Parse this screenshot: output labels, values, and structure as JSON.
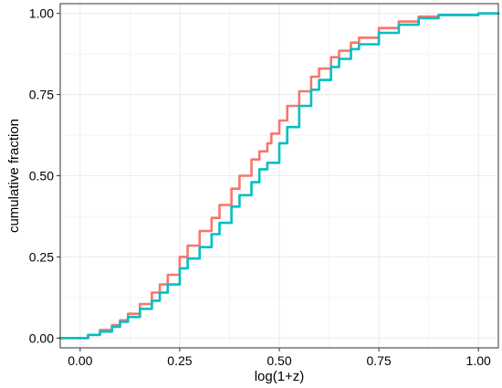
{
  "chart_data": {
    "type": "line",
    "xlabel": "log(1+z)",
    "ylabel": "cumulative fraction",
    "xlim": [
      -0.05,
      1.05
    ],
    "ylim": [
      -0.03,
      1.03
    ],
    "x_ticks": [
      0.0,
      0.25,
      0.5,
      0.75,
      1.0
    ],
    "x_tick_labels": [
      "0.00",
      "0.25",
      "0.50",
      "0.75",
      "1.00"
    ],
    "y_ticks": [
      0.0,
      0.25,
      0.5,
      0.75,
      1.0
    ],
    "y_tick_labels": [
      "0.00",
      "0.25",
      "0.50",
      "0.75",
      "1.00"
    ],
    "grid": true,
    "legend": "none",
    "series": [
      {
        "color": "#F8766D",
        "x": [
          -0.05,
          0.0,
          0.02,
          0.05,
          0.08,
          0.1,
          0.12,
          0.15,
          0.18,
          0.2,
          0.22,
          0.25,
          0.27,
          0.3,
          0.33,
          0.35,
          0.38,
          0.4,
          0.43,
          0.45,
          0.47,
          0.48,
          0.5,
          0.52,
          0.55,
          0.58,
          0.6,
          0.63,
          0.65,
          0.68,
          0.7,
          0.75,
          0.8,
          0.85,
          0.9,
          1.0,
          1.05
        ],
        "y": [
          0.0,
          0.0,
          0.01,
          0.025,
          0.04,
          0.055,
          0.075,
          0.105,
          0.14,
          0.165,
          0.195,
          0.25,
          0.285,
          0.33,
          0.37,
          0.41,
          0.46,
          0.5,
          0.55,
          0.575,
          0.6,
          0.63,
          0.67,
          0.715,
          0.76,
          0.805,
          0.83,
          0.865,
          0.885,
          0.91,
          0.925,
          0.955,
          0.975,
          0.99,
          0.995,
          1.0,
          1.0
        ]
      },
      {
        "color": "#00BFC4",
        "x": [
          -0.05,
          0.0,
          0.02,
          0.05,
          0.08,
          0.1,
          0.12,
          0.15,
          0.18,
          0.2,
          0.22,
          0.25,
          0.27,
          0.3,
          0.33,
          0.35,
          0.38,
          0.4,
          0.43,
          0.45,
          0.47,
          0.5,
          0.52,
          0.55,
          0.58,
          0.6,
          0.63,
          0.65,
          0.68,
          0.7,
          0.75,
          0.8,
          0.85,
          0.9,
          1.0,
          1.05
        ],
        "y": [
          0.0,
          0.0,
          0.01,
          0.02,
          0.035,
          0.05,
          0.065,
          0.09,
          0.115,
          0.14,
          0.165,
          0.215,
          0.245,
          0.28,
          0.32,
          0.355,
          0.405,
          0.44,
          0.48,
          0.52,
          0.54,
          0.6,
          0.65,
          0.715,
          0.765,
          0.795,
          0.835,
          0.86,
          0.89,
          0.905,
          0.94,
          0.965,
          0.985,
          0.995,
          1.0,
          1.0
        ]
      }
    ]
  }
}
